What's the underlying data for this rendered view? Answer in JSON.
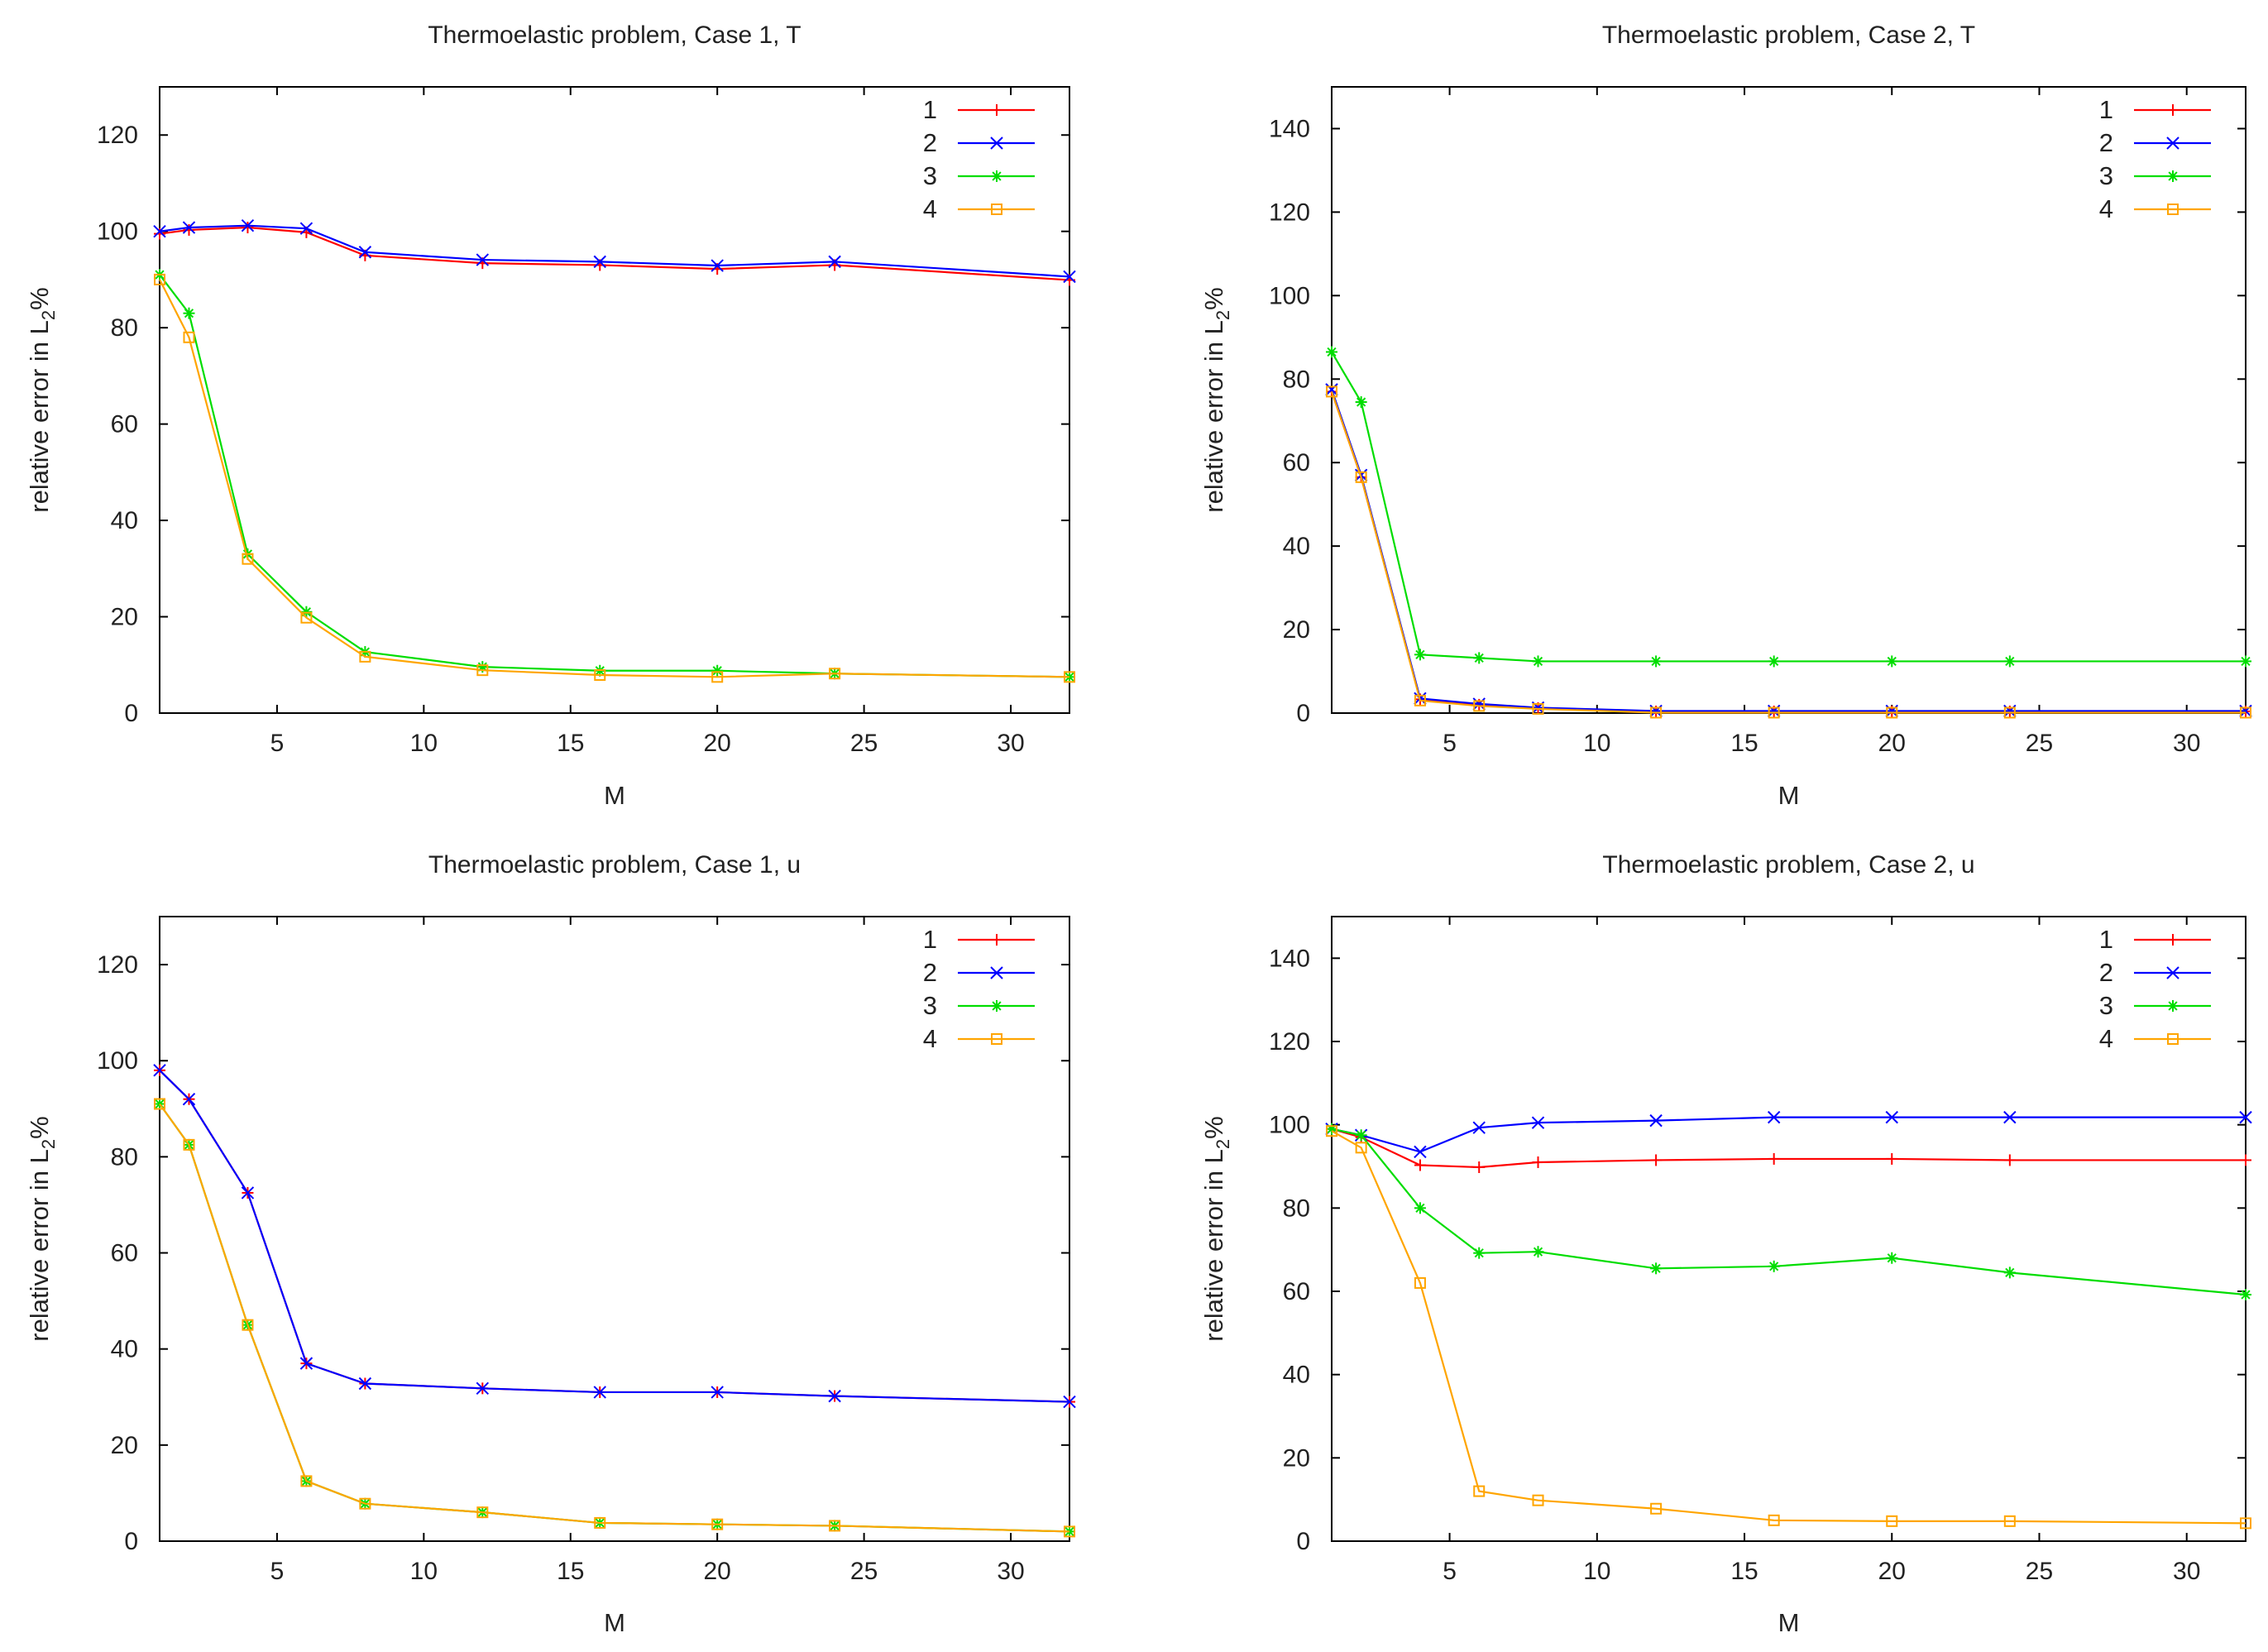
{
  "chart_data": [
    {
      "type": "line",
      "title": "Thermoelastic problem, Case 1, T",
      "xlabel": "M",
      "ylabel_main": "relative error in L",
      "ylabel_sub": "2",
      "ylabel_suffix": "%",
      "xlim": [
        1,
        32
      ],
      "ylim": [
        0,
        130
      ],
      "xticks": [
        5,
        10,
        15,
        20,
        25,
        30
      ],
      "yticks": [
        0,
        20,
        40,
        60,
        80,
        100,
        120
      ],
      "x": [
        1,
        2,
        4,
        6,
        8,
        12,
        16,
        20,
        24,
        32
      ],
      "legend_position": "top-right",
      "series": [
        {
          "name": "1",
          "color": "#ff0000",
          "marker": "plus",
          "values": [
            99.5,
            100.3,
            100.8,
            99.8,
            95.0,
            93.4,
            93.0,
            92.2,
            93.0,
            89.9
          ]
        },
        {
          "name": "2",
          "color": "#0000ff",
          "marker": "cross",
          "values": [
            100.0,
            100.8,
            101.2,
            100.6,
            95.7,
            94.1,
            93.7,
            92.9,
            93.7,
            90.6
          ]
        },
        {
          "name": "3",
          "color": "#00dd00",
          "marker": "star",
          "values": [
            91.0,
            83.0,
            33.0,
            21.0,
            12.7,
            9.6,
            8.8,
            8.8,
            8.2,
            7.5
          ]
        },
        {
          "name": "4",
          "color": "#ffa500",
          "marker": "square",
          "values": [
            90.0,
            78.0,
            32.0,
            19.8,
            11.7,
            8.9,
            7.9,
            7.5,
            8.2,
            7.5
          ]
        }
      ]
    },
    {
      "type": "line",
      "title": "Thermoelastic problem, Case 2, T",
      "xlabel": "M",
      "ylabel_main": "relative error in L",
      "ylabel_sub": "2",
      "ylabel_suffix": "%",
      "xlim": [
        1,
        32
      ],
      "ylim": [
        0,
        150
      ],
      "xticks": [
        5,
        10,
        15,
        20,
        25,
        30
      ],
      "yticks": [
        0,
        20,
        40,
        60,
        80,
        100,
        120,
        140
      ],
      "x": [
        1,
        2,
        4,
        6,
        8,
        12,
        16,
        20,
        24,
        32
      ],
      "legend_position": "top-right",
      "series": [
        {
          "name": "1",
          "color": "#ff0000",
          "marker": "plus",
          "values": [
            77.0,
            56.5,
            3.3,
            2.0,
            1.2,
            0.4,
            0.4,
            0.4,
            0.4,
            0.4
          ]
        },
        {
          "name": "2",
          "color": "#0000ff",
          "marker": "cross",
          "values": [
            77.5,
            57.0,
            3.5,
            2.2,
            1.3,
            0.5,
            0.5,
            0.5,
            0.5,
            0.5
          ]
        },
        {
          "name": "3",
          "color": "#00dd00",
          "marker": "star",
          "values": [
            86.5,
            74.5,
            14.0,
            13.2,
            12.4,
            12.4,
            12.4,
            12.4,
            12.4,
            12.4
          ]
        },
        {
          "name": "4",
          "color": "#ffa500",
          "marker": "square",
          "values": [
            77.0,
            56.5,
            3.0,
            1.7,
            1.0,
            0.1,
            0.1,
            0.1,
            0.1,
            0.1
          ]
        }
      ]
    },
    {
      "type": "line",
      "title": "Thermoelastic problem, Case 1, u",
      "xlabel": "M",
      "ylabel_main": "relative error in L",
      "ylabel_sub": "2",
      "ylabel_suffix": "%",
      "xlim": [
        1,
        32
      ],
      "ylim": [
        0,
        130
      ],
      "xticks": [
        5,
        10,
        15,
        20,
        25,
        30
      ],
      "yticks": [
        0,
        20,
        40,
        60,
        80,
        100,
        120
      ],
      "x": [
        1,
        2,
        4,
        6,
        8,
        12,
        16,
        20,
        24,
        32
      ],
      "legend_position": "top-right",
      "series": [
        {
          "name": "1",
          "color": "#ff0000",
          "marker": "plus",
          "values": [
            98.0,
            92.0,
            72.5,
            37.0,
            32.8,
            31.8,
            31.0,
            31.0,
            30.2,
            29.0
          ]
        },
        {
          "name": "2",
          "color": "#0000ff",
          "marker": "cross",
          "values": [
            98.0,
            92.0,
            72.5,
            37.0,
            32.8,
            31.8,
            31.0,
            31.0,
            30.2,
            29.0
          ]
        },
        {
          "name": "3",
          "color": "#00dd00",
          "marker": "star",
          "values": [
            91.0,
            82.5,
            45.0,
            12.5,
            7.8,
            6.0,
            3.8,
            3.5,
            3.2,
            2.0
          ]
        },
        {
          "name": "4",
          "color": "#ffa500",
          "marker": "square",
          "values": [
            91.0,
            82.5,
            45.0,
            12.5,
            7.8,
            6.0,
            3.8,
            3.5,
            3.2,
            2.0
          ]
        }
      ]
    },
    {
      "type": "line",
      "title": "Thermoelastic problem, Case 2, u",
      "xlabel": "M",
      "ylabel_main": "relative error in L",
      "ylabel_sub": "2",
      "ylabel_suffix": "%",
      "xlim": [
        1,
        32
      ],
      "ylim": [
        0,
        150
      ],
      "xticks": [
        5,
        10,
        15,
        20,
        25,
        30
      ],
      "yticks": [
        0,
        20,
        40,
        60,
        80,
        100,
        120,
        140
      ],
      "x": [
        1,
        2,
        4,
        6,
        8,
        12,
        16,
        20,
        24,
        32
      ],
      "legend_position": "top-right",
      "series": [
        {
          "name": "1",
          "color": "#ff0000",
          "marker": "plus",
          "values": [
            99.0,
            97.0,
            90.3,
            89.8,
            91.0,
            91.5,
            91.8,
            91.8,
            91.5,
            91.5
          ]
        },
        {
          "name": "2",
          "color": "#0000ff",
          "marker": "cross",
          "values": [
            99.0,
            97.5,
            93.5,
            99.3,
            100.5,
            101.0,
            101.8,
            101.8,
            101.8,
            101.8
          ]
        },
        {
          "name": "3",
          "color": "#00dd00",
          "marker": "star",
          "values": [
            99.0,
            97.5,
            80.0,
            69.2,
            69.5,
            65.5,
            66.0,
            68.0,
            64.5,
            59.2
          ]
        },
        {
          "name": "4",
          "color": "#ffa500",
          "marker": "square",
          "values": [
            98.5,
            94.5,
            62.0,
            12.0,
            9.8,
            7.8,
            5.0,
            4.8,
            4.8,
            4.3
          ]
        }
      ]
    }
  ]
}
